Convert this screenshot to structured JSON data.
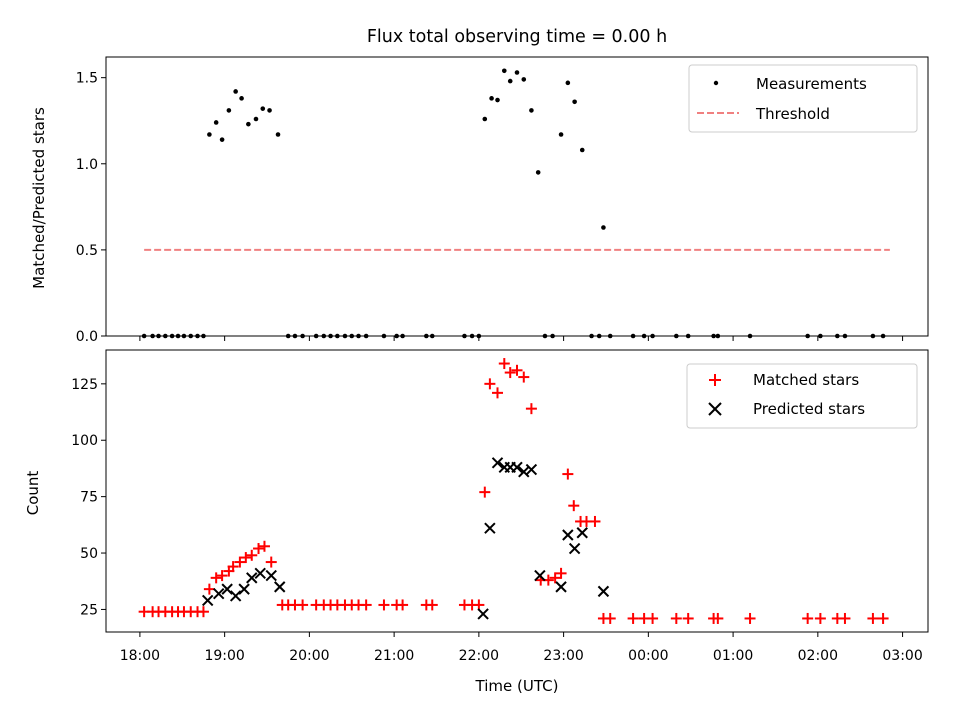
{
  "chart_data": [
    {
      "type": "scatter",
      "title": "Flux total observing time = 0.00 h",
      "xlabel": "",
      "ylabel": "Matched/Predicted stars",
      "xlim": [
        17.6,
        27.3
      ],
      "ylim": [
        0.0,
        1.62
      ],
      "yticks": [
        0.0,
        0.5,
        1.0,
        1.5
      ],
      "ytick_labels": [
        "0.0",
        "0.5",
        "1.0",
        "1.5"
      ],
      "legend_position": "top-right",
      "series": [
        {
          "name": "Measurements",
          "marker": "dot",
          "color": "#000000",
          "x": [
            18.05,
            18.15,
            18.22,
            18.3,
            18.38,
            18.45,
            18.52,
            18.6,
            18.68,
            18.75,
            18.82,
            18.9,
            18.97,
            19.05,
            19.13,
            19.2,
            19.28,
            19.37,
            19.45,
            19.53,
            19.63,
            19.75,
            19.83,
            19.92,
            20.08,
            20.17,
            20.25,
            20.33,
            20.42,
            20.5,
            20.58,
            20.67,
            20.88,
            21.03,
            21.1,
            21.38,
            21.45,
            21.83,
            21.92,
            22.0,
            22.07,
            22.15,
            22.22,
            22.3,
            22.37,
            22.45,
            22.53,
            22.62,
            22.7,
            22.78,
            22.87,
            22.97,
            23.05,
            23.13,
            23.22,
            23.33,
            23.42,
            23.47,
            23.55,
            23.82,
            23.95,
            24.05,
            24.33,
            24.47,
            24.77,
            24.82,
            25.2,
            25.88,
            26.03,
            26.23,
            26.32,
            26.65,
            26.77
          ],
          "y": [
            0,
            0,
            0,
            0,
            0,
            0,
            0,
            0,
            0,
            0,
            1.17,
            1.24,
            1.14,
            1.31,
            1.42,
            1.38,
            1.23,
            1.26,
            1.32,
            1.31,
            1.17,
            0,
            0,
            0,
            0,
            0,
            0,
            0,
            0,
            0,
            0,
            0,
            0,
            0,
            0,
            0,
            0,
            0,
            0,
            0,
            1.26,
            1.38,
            1.37,
            1.54,
            1.48,
            1.53,
            1.49,
            1.31,
            0.95,
            0,
            0,
            1.17,
            1.47,
            1.36,
            1.08,
            0,
            0,
            0.63,
            0,
            0,
            0,
            0,
            0,
            0,
            0,
            0,
            0,
            0,
            0,
            0,
            0,
            0,
            0
          ]
        },
        {
          "name": "Threshold",
          "marker": "dashed-line",
          "color": "#f08080",
          "x": [
            18.05,
            26.85
          ],
          "y": [
            0.5,
            0.5
          ]
        }
      ]
    },
    {
      "type": "scatter",
      "title": "",
      "xlabel": "Time (UTC)",
      "ylabel": "Count",
      "xlim": [
        17.6,
        27.3
      ],
      "ylim": [
        15,
        140
      ],
      "yticks": [
        25,
        50,
        75,
        100,
        125
      ],
      "ytick_labels": [
        "25",
        "50",
        "75",
        "100",
        "125"
      ],
      "xticks": [
        18,
        19,
        20,
        21,
        22,
        23,
        24,
        25,
        26,
        27
      ],
      "xtick_labels": [
        "18:00",
        "19:00",
        "20:00",
        "21:00",
        "22:00",
        "23:00",
        "00:00",
        "01:00",
        "02:00",
        "03:00"
      ],
      "legend_position": "top-right",
      "series": [
        {
          "name": "Matched stars",
          "marker": "plus",
          "color": "#ff0000",
          "x": [
            18.05,
            18.15,
            18.22,
            18.3,
            18.38,
            18.45,
            18.52,
            18.6,
            18.68,
            18.75,
            18.82,
            18.9,
            18.97,
            19.05,
            19.1,
            19.18,
            19.25,
            19.32,
            19.4,
            19.47,
            19.55,
            19.68,
            19.75,
            19.83,
            19.92,
            20.08,
            20.17,
            20.25,
            20.33,
            20.42,
            20.5,
            20.58,
            20.67,
            20.88,
            21.03,
            21.1,
            21.38,
            21.45,
            21.83,
            21.92,
            22.0,
            22.07,
            22.13,
            22.22,
            22.3,
            22.37,
            22.45,
            22.53,
            22.62,
            22.73,
            22.82,
            22.9,
            22.97,
            23.05,
            23.12,
            23.2,
            23.27,
            23.37,
            23.47,
            23.55,
            23.82,
            23.95,
            24.05,
            24.33,
            24.47,
            24.77,
            24.82,
            25.2,
            25.88,
            26.03,
            26.23,
            26.32,
            26.65,
            26.77
          ],
          "y": [
            24,
            24,
            24,
            24,
            24,
            24,
            24,
            24,
            24,
            24,
            34,
            39,
            40,
            42,
            44,
            46,
            48,
            49,
            52,
            53,
            46,
            27,
            27,
            27,
            27,
            27,
            27,
            27,
            27,
            27,
            27,
            27,
            27,
            27,
            27,
            27,
            27,
            27,
            27,
            27,
            27,
            77,
            125,
            121,
            134,
            130,
            131,
            128,
            114,
            38,
            38,
            39,
            41,
            85,
            71,
            64,
            64,
            64,
            21,
            21,
            21,
            21,
            21,
            21,
            21,
            21,
            21,
            21,
            21,
            21,
            21,
            21,
            21,
            21
          ]
        },
        {
          "name": "Predicted stars",
          "marker": "x",
          "color": "#000000",
          "x": [
            18.8,
            18.93,
            19.03,
            19.13,
            19.23,
            19.32,
            19.42,
            19.55,
            19.65,
            22.05,
            22.13,
            22.22,
            22.3,
            22.37,
            22.45,
            22.53,
            22.62,
            22.72,
            22.97,
            23.05,
            23.13,
            23.22,
            23.47
          ],
          "y": [
            29,
            32,
            34,
            31,
            34,
            39,
            41,
            40,
            35,
            23,
            61,
            90,
            88,
            88,
            88,
            86,
            87,
            40,
            35,
            58,
            52,
            59,
            33
          ]
        }
      ]
    }
  ]
}
